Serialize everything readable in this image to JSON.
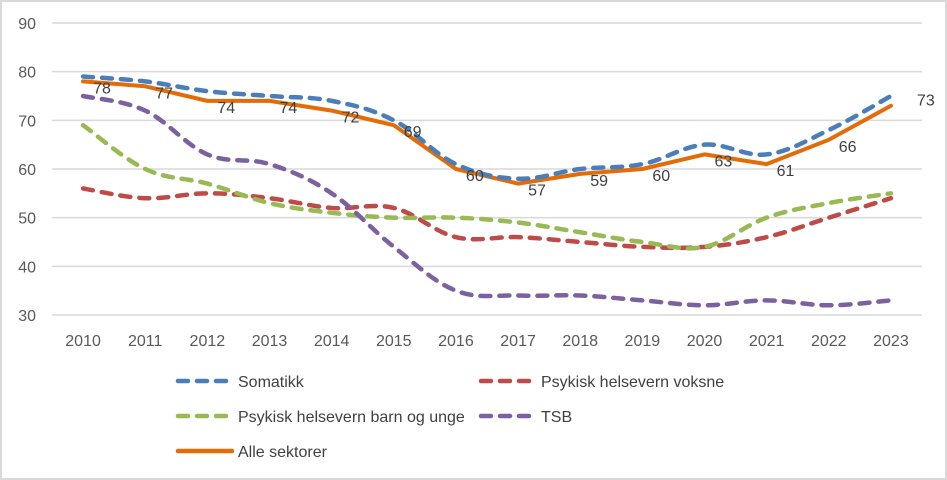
{
  "chart_data": {
    "type": "line",
    "title": "",
    "xlabel": "",
    "ylabel": "",
    "ylim": [
      30,
      90
    ],
    "yticks": [
      30,
      40,
      50,
      60,
      70,
      80,
      90
    ],
    "grid": "horizontal",
    "legend_position": "bottom",
    "x": [
      "2010",
      "2011",
      "2012",
      "2013",
      "2014",
      "2015",
      "2016",
      "2017",
      "2018",
      "2019",
      "2020",
      "2021",
      "2022",
      "2023"
    ],
    "series": [
      {
        "name": "Somatikk",
        "color": "#4a7ebb",
        "style": "dashed",
        "values": [
          79,
          78,
          76,
          75,
          74,
          70,
          61,
          58,
          60,
          61,
          65,
          63,
          68,
          75
        ]
      },
      {
        "name": "Psykisk helsevern voksne",
        "color": "#be4b48",
        "style": "dashed",
        "values": [
          56,
          54,
          55,
          54,
          52,
          52,
          46,
          46,
          45,
          44,
          44,
          46,
          50,
          54
        ]
      },
      {
        "name": "Psykisk helsevern barn og unge",
        "color": "#98b954",
        "style": "dashed",
        "values": [
          69,
          60,
          57,
          53,
          51,
          50,
          50,
          49,
          47,
          45,
          44,
          50,
          53,
          55
        ]
      },
      {
        "name": "TSB",
        "color": "#7d60a0",
        "style": "dashed",
        "values": [
          75,
          72,
          63,
          61,
          55,
          44,
          35,
          34,
          34,
          33,
          32,
          33,
          32,
          33
        ]
      },
      {
        "name": "Alle sektorer",
        "color": "#e36c09",
        "style": "solid",
        "values": [
          78,
          77,
          74,
          74,
          72,
          69,
          60,
          57,
          59,
          60,
          63,
          61,
          66,
          73
        ],
        "data_labels": [
          "78",
          "77",
          "74",
          "74",
          "72",
          "69",
          "60",
          "57",
          "59",
          "60",
          "63",
          "61",
          "66",
          "73"
        ]
      }
    ]
  },
  "legend": {
    "items": [
      {
        "label": "Somatikk",
        "series": 0
      },
      {
        "label": "Psykisk helsevern voksne",
        "series": 1
      },
      {
        "label": "Psykisk helsevern barn og unge",
        "series": 2
      },
      {
        "label": "TSB",
        "series": 3
      },
      {
        "label": "Alle sektorer",
        "series": 4
      }
    ]
  }
}
